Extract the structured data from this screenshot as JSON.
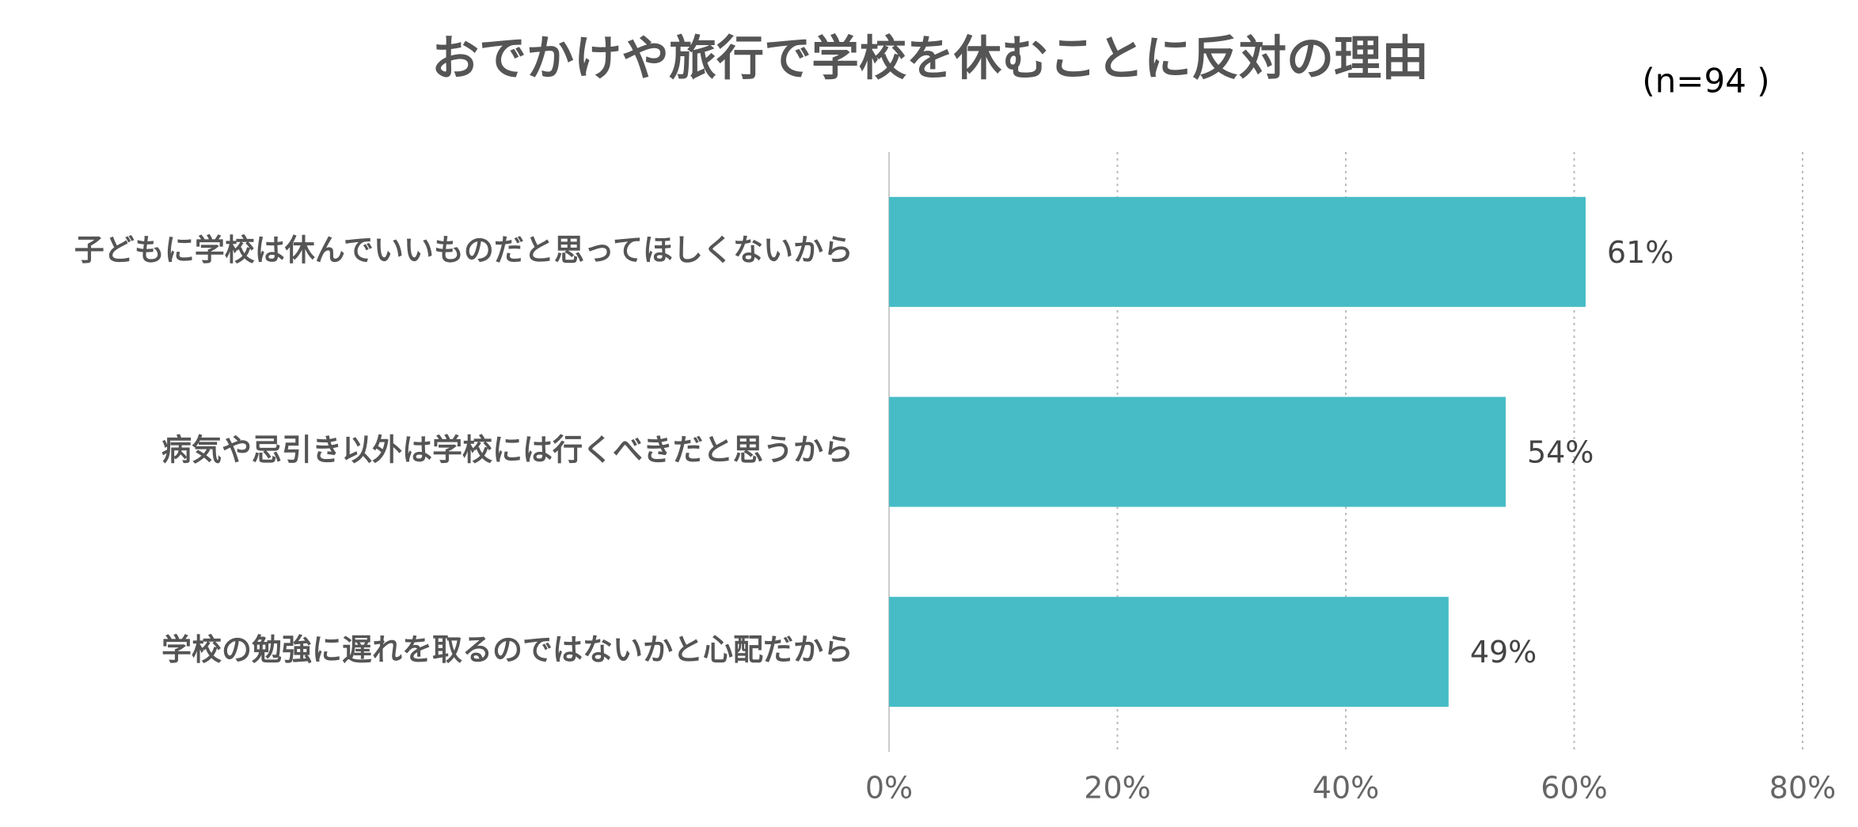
{
  "chart_data": {
    "type": "bar",
    "orientation": "horizontal",
    "title": "おでかけや旅行で学校を休むことに反対の理由",
    "note": "(n=94 )",
    "categories": [
      "子どもに学校は休んでいいものだと思ってほしくないから",
      "病気や忌引き以外は学校には行くべきだと思うから",
      "学校の勉強に遅れを取るのではないかと心配だから"
    ],
    "values": [
      61,
      54,
      49
    ],
    "value_labels": [
      "61%",
      "54%",
      "49%"
    ],
    "color": "#47bcc6",
    "xlim": [
      0,
      80
    ],
    "xticks": [
      {
        "value": 0,
        "label": "0%"
      },
      {
        "value": 20,
        "label": "20%"
      },
      {
        "value": 40,
        "label": "40%"
      },
      {
        "value": 60,
        "label": "60%"
      },
      {
        "value": 80,
        "label": "80%"
      }
    ],
    "grid": true
  }
}
